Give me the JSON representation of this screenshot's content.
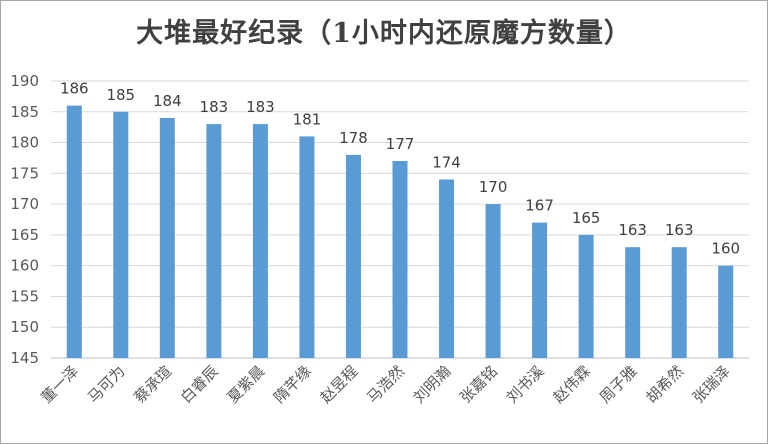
{
  "chart_data": {
    "type": "bar",
    "title": "大堆最好纪录（1小时内还原魔方数量）",
    "xlabel": "",
    "ylabel": "",
    "categories": [
      "董一泽",
      "马可为",
      "蔡承瑄",
      "白睿辰",
      "夏紫晨",
      "隋芊缘",
      "赵昱程",
      "马浩然",
      "刘明瀚",
      "张嘉铭",
      "刘书溪",
      "赵伟霖",
      "周子雅",
      "胡希然",
      "张瑞泽"
    ],
    "values": [
      186,
      185,
      184,
      183,
      183,
      181,
      178,
      177,
      174,
      170,
      167,
      165,
      163,
      163,
      160
    ],
    "ylim": [
      145,
      190
    ],
    "yticks": [
      145,
      150,
      155,
      160,
      165,
      170,
      175,
      180,
      185,
      190
    ],
    "grid": true,
    "legend": "none",
    "bar_color": "#5b9bd5",
    "grid_color": "#d9d9d9"
  }
}
